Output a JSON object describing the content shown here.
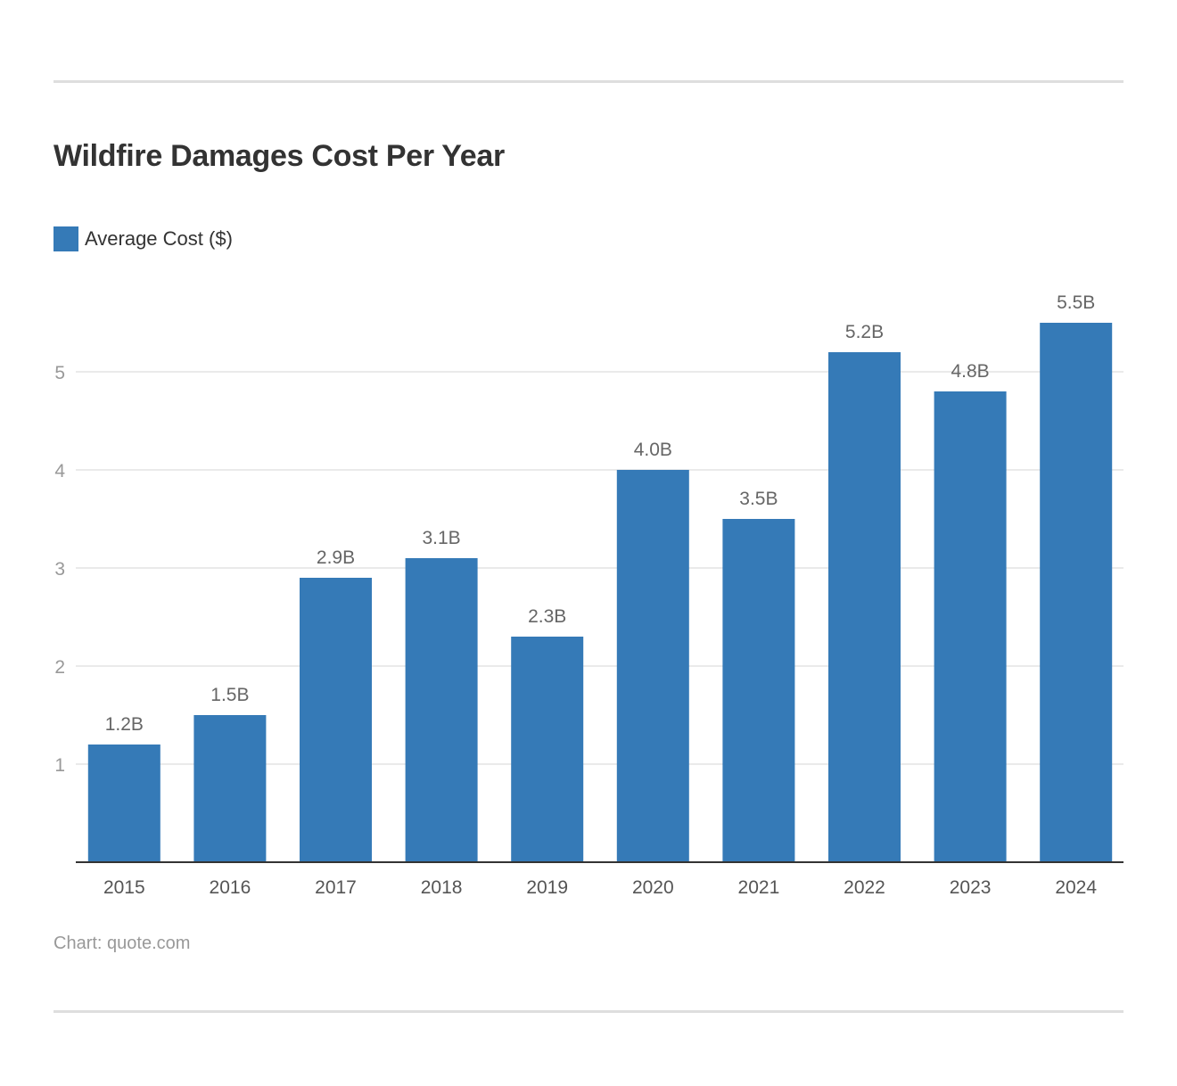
{
  "chart_data": {
    "type": "bar",
    "title": "Wildfire Damages Cost Per Year",
    "categories": [
      "2015",
      "2016",
      "2017",
      "2018",
      "2019",
      "2020",
      "2021",
      "2022",
      "2023",
      "2024"
    ],
    "series": [
      {
        "name": "Average Cost ($)",
        "values": [
          1.2,
          1.5,
          2.9,
          3.1,
          2.3,
          4.0,
          3.5,
          5.2,
          4.8,
          5.5
        ],
        "color": "#357ab7"
      }
    ],
    "data_labels": [
      "1.2B",
      "1.5B",
      "2.9B",
      "3.1B",
      "2.3B",
      "4.0B",
      "3.5B",
      "5.2B",
      "4.8B",
      "5.5B"
    ],
    "yticks": [
      1,
      2,
      3,
      4,
      5
    ],
    "ylim": [
      0,
      5.5
    ],
    "grid": true,
    "legend": "top-left",
    "source": "Chart: quote.com"
  }
}
